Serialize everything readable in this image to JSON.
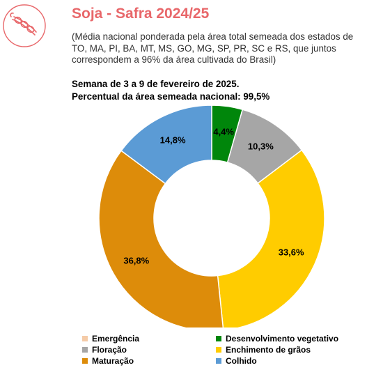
{
  "header": {
    "title": "Soja - Safra 2024/25",
    "subtitle_lines": [
      "(Média nacional ponderada pela área total semeada dos estados de",
      "TO, MA, PI, BA, MT, MS, GO, MG, SP, PR, SC e RS, que juntos",
      "correspondem a 96% da área cultivada do Brasil)"
    ],
    "week": "Semana de 3 a 9 de fevereiro de 2025.",
    "area_sown": "Percentual da área semeada nacional: 99,5%"
  },
  "icons": {
    "logo": "soybean-pod-icon",
    "logo_color": "#e8676a"
  },
  "chart_data": {
    "type": "pie",
    "donut": true,
    "categories": [
      "Emergência",
      "Desenvolvimento vegetativo",
      "Floração",
      "Enchimento de grãos",
      "Maturação",
      "Colhido"
    ],
    "values": [
      0.0,
      4.4,
      10.3,
      33.6,
      36.8,
      14.8
    ],
    "labels": [
      "",
      "4,4%",
      "10,3%",
      "33,6%",
      "36,8%",
      "14,8%"
    ],
    "colors": [
      "#f5cba7",
      "#00860b",
      "#a6a6a6",
      "#ffcc00",
      "#dd8c0a",
      "#5b9bd5"
    ],
    "legend_position": "bottom"
  }
}
